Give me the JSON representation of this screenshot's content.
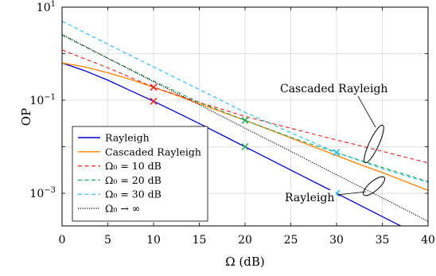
{
  "chart_data": {
    "type": "line",
    "xlabel": "Ω (dB)",
    "ylabel": "OP",
    "xlim": [
      0,
      40
    ],
    "ylim": [
      0.0002,
      10
    ],
    "yscale": "log",
    "grid": true,
    "x_ticks": [
      0,
      5,
      10,
      15,
      20,
      25,
      30,
      35,
      40
    ],
    "x_tick_labels": [
      "0",
      "5",
      "10",
      "15",
      "20",
      "25",
      "30",
      "35",
      "40"
    ],
    "y_ticks": [
      {
        "value": 10,
        "base": "10",
        "exp": "1"
      },
      {
        "value": 0.1,
        "base": "10",
        "exp": "−1"
      },
      {
        "value": 0.001,
        "base": "10",
        "exp": "−3"
      }
    ],
    "legend_position": "bottom-left",
    "series": [
      {
        "name": "Rayleigh",
        "color": "#0000cc",
        "style": "solid",
        "x": [
          0,
          2.5,
          5,
          7.5,
          10,
          12.5,
          15,
          17.5,
          20,
          22.5,
          25,
          27.5,
          30,
          32.5,
          35,
          37.5,
          40
        ],
        "y": [
          0.632,
          0.43,
          0.27,
          0.16,
          0.095,
          0.055,
          0.0316,
          0.0178,
          0.01,
          0.00562,
          0.00316,
          0.00178,
          0.001,
          0.000562,
          0.000316,
          0.000178,
          0.0001
        ]
      },
      {
        "name": "Cascaded Rayleigh",
        "color": "#ff8000",
        "style": "solid",
        "x": [
          0,
          2.5,
          5,
          7.5,
          10,
          12.5,
          15,
          17.5,
          20,
          22.5,
          25,
          27.5,
          30,
          32.5,
          35,
          37.5,
          40
        ],
        "y": [
          0.632,
          0.52,
          0.39,
          0.28,
          0.19,
          0.128,
          0.084,
          0.056,
          0.037,
          0.024,
          0.0155,
          0.01,
          0.0065,
          0.0042,
          0.0028,
          0.0018,
          0.00116
        ]
      },
      {
        "name": "Ω₀ = 10 dB",
        "color": "#ee2222",
        "style": "dashed",
        "x": [
          0,
          5,
          10,
          15,
          20,
          25,
          30,
          35,
          40
        ],
        "y": [
          1.2,
          0.5,
          0.19,
          0.09,
          0.045,
          0.025,
          0.014,
          0.008,
          0.0045
        ]
      },
      {
        "name": "Ω₀ = 20 dB",
        "color": "#22aa55",
        "style": "dashed",
        "x": [
          0,
          5,
          10,
          15,
          20,
          25,
          30,
          35,
          40
        ],
        "y": [
          2.5,
          0.8,
          0.26,
          0.09,
          0.037,
          0.016,
          0.0075,
          0.0036,
          0.0018
        ]
      },
      {
        "name": "Ω₀ = 30 dB",
        "color": "#22bbee",
        "style": "dashed",
        "x": [
          0,
          5,
          10,
          15,
          20,
          25,
          30,
          35,
          40
        ],
        "y": [
          5,
          1.6,
          0.52,
          0.17,
          0.055,
          0.02,
          0.0075,
          0.0034,
          0.0017
        ]
      },
      {
        "name": "Ω₀ → ∞",
        "color": "#000000",
        "style": "dotted",
        "x": [
          0,
          5,
          10,
          15,
          20,
          25,
          30,
          35,
          40
        ],
        "y": [
          2.6,
          0.8,
          0.25,
          0.08,
          0.025,
          0.008,
          0.0025,
          0.0008,
          0.00025
        ]
      }
    ],
    "markers": [
      {
        "x": 10,
        "y": 0.19,
        "color": "#ee2222"
      },
      {
        "x": 20,
        "y": 0.037,
        "color": "#22aa55"
      },
      {
        "x": 30,
        "y": 0.0075,
        "color": "#22bbee"
      },
      {
        "x": 10,
        "y": 0.095,
        "color": "#ee2222"
      },
      {
        "x": 20,
        "y": 0.01,
        "color": "#22aa55"
      },
      {
        "x": 30,
        "y": 0.001,
        "color": "#22bbee"
      }
    ],
    "annotations": [
      {
        "text": "Cascaded Rayleigh"
      },
      {
        "text": "Rayleigh"
      }
    ]
  }
}
